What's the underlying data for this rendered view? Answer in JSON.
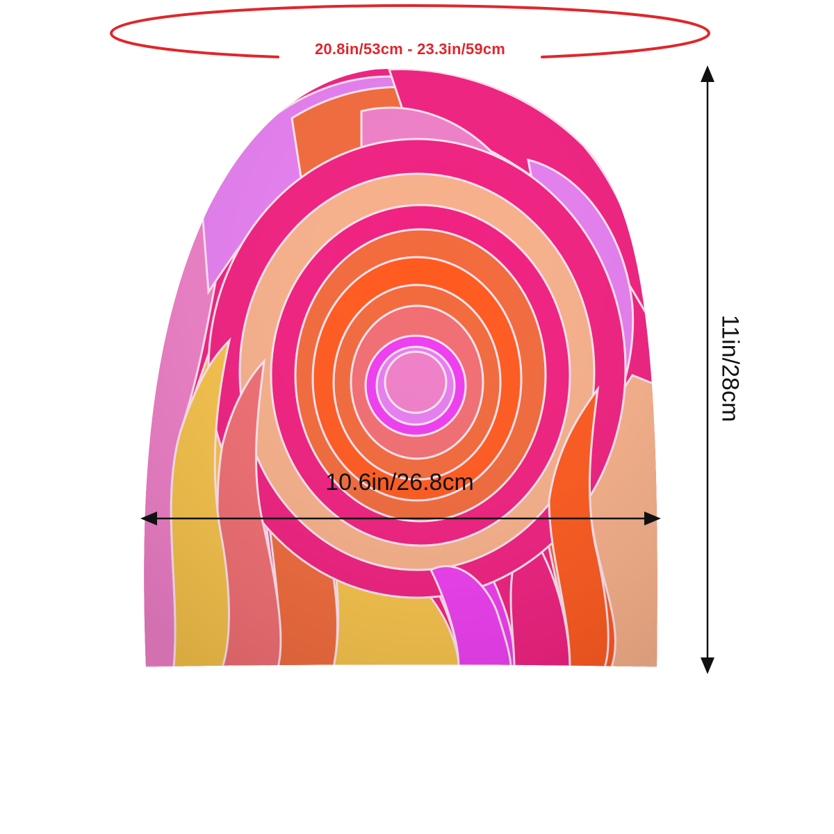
{
  "measurements": {
    "circumference": "20.8in/53cm - 23.3in/59cm",
    "height": "11in/28cm",
    "width": "10.6in/26.8cm"
  },
  "colors": {
    "circumference_accent": "#e0262c",
    "dimension_lines": "#111111",
    "pattern": [
      "#f02080",
      "#f26a3c",
      "#ff5a1f",
      "#f6c24a",
      "#f7b08a",
      "#e57ef0",
      "#ef7fc8",
      "#ee3df0",
      "#f16e73"
    ]
  }
}
